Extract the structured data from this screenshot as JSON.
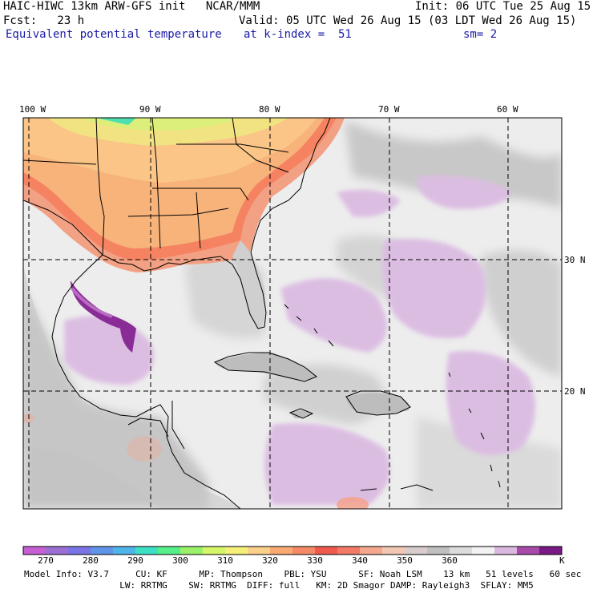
{
  "header": {
    "line1_left": "HAIC-HIWC 13km ARW-GFS init   NCAR/MMM",
    "line1_right": "Init: 06 UTC Tue 25 Aug 15",
    "line2_left": "Fcst:   23 h",
    "line2_right": "Valid: 05 UTC Wed 26 Aug 15 (03 LDT Wed 26 Aug 15)",
    "line3_left": "Equivalent potential temperature",
    "line3_mid": "at k-index =  51",
    "line3_right": "sm= 2"
  },
  "map": {
    "lon_labels": [
      "100 W",
      "90 W",
      "80 W",
      "70 W",
      "60 W"
    ],
    "lat_labels": [
      "30 N",
      "20 N"
    ]
  },
  "colorbar": {
    "colors": [
      "#c65fd4",
      "#9b6fd4",
      "#7a74e6",
      "#5f94e8",
      "#4fb4ea",
      "#3ee0c4",
      "#55f08a",
      "#99f26a",
      "#d6f66a",
      "#f6f07a",
      "#fad08a",
      "#f8aa72",
      "#f48a66",
      "#f05a4e",
      "#f27a66",
      "#f6a88e",
      "#f2c8b4",
      "#d8cccc",
      "#c0c0c0",
      "#dcdcdc",
      "#f2f2f2",
      "#dcb8e0",
      "#a84aaa",
      "#7a1a86"
    ],
    "labels": [
      "270",
      "280",
      "290",
      "300",
      "310",
      "320",
      "330",
      "340",
      "350",
      "360"
    ],
    "unit": "K"
  },
  "footer": {
    "line1": "Model Info: V3.7     CU: KF      MP: Thompson    PBL: YSU      SF: Noah LSM    13 km   51 levels   60 sec",
    "line2": "                  LW: RRTMG    SW: RRTMG  DIFF: full   KM: 2D Smagor DAMP: Rayleigh3  SFLAY: MM5"
  }
}
